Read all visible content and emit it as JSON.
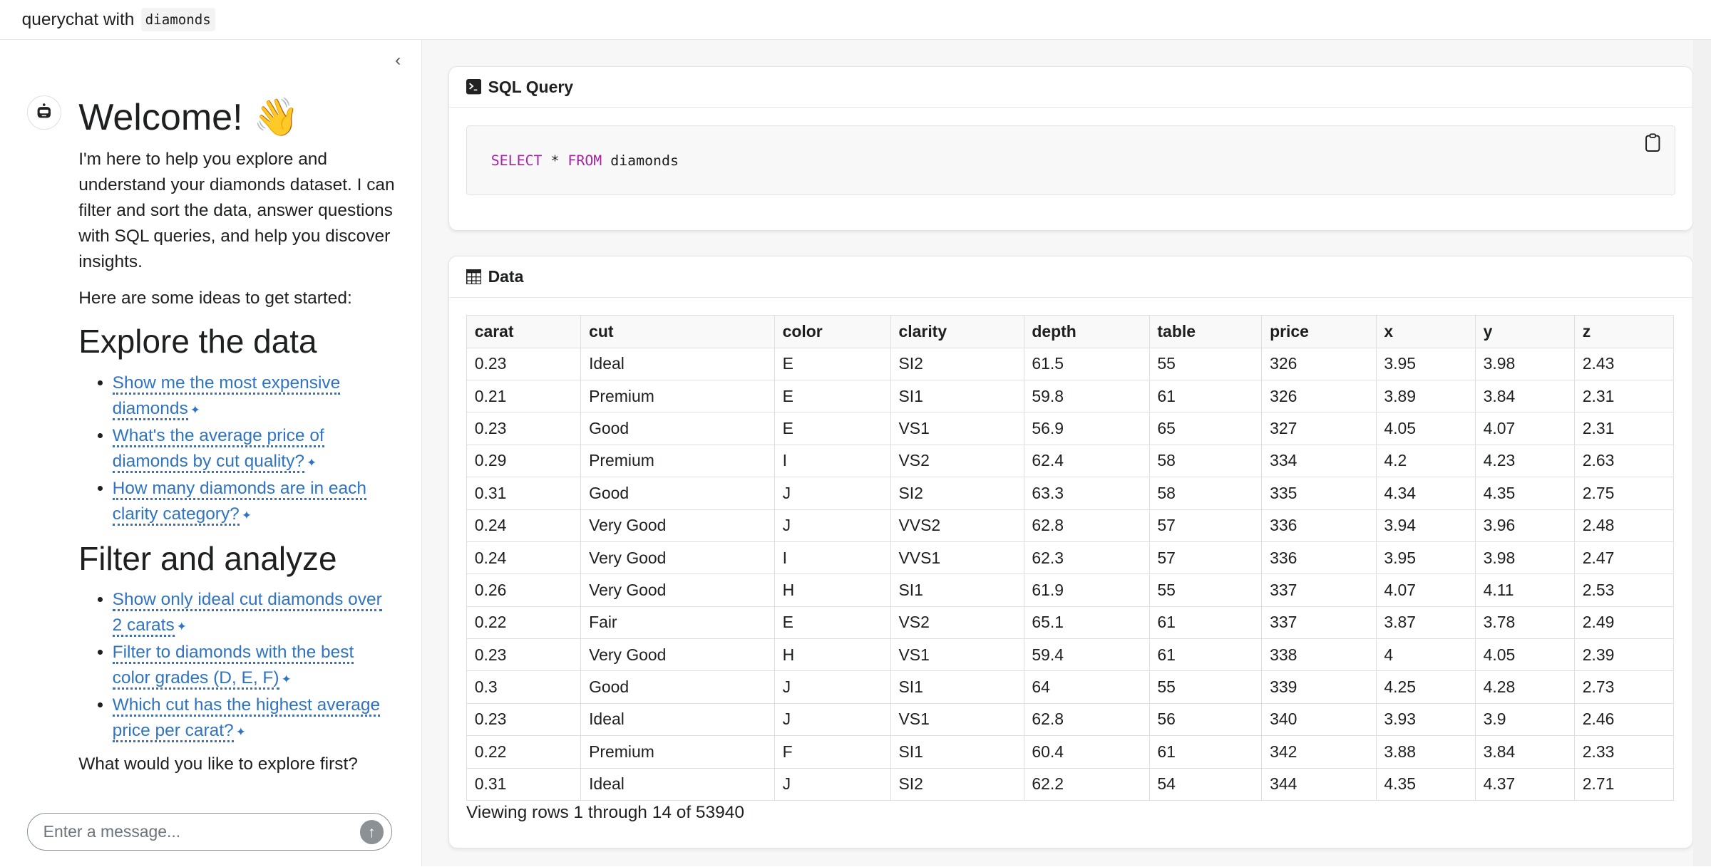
{
  "header": {
    "title": "querychat with",
    "dataset": "diamonds"
  },
  "sidebar": {
    "welcome": "Welcome! 👋",
    "intro": "I'm here to help you explore and understand your diamonds dataset. I can filter and sort the data, answer questions with SQL queries, and help you discover insights.",
    "ideas": "Here are some ideas to get started:",
    "sections": [
      {
        "title": "Explore the data",
        "items": [
          "Show me the most expensive diamonds",
          "What's the average price of diamonds by cut quality?",
          "How many diamonds are in each clarity category?"
        ]
      },
      {
        "title": "Filter and analyze",
        "items": [
          "Show only ideal cut diamonds over 2 carats",
          "Filter to diamonds with the best color grades (D, E, F)",
          "Which cut has the highest average price per carat?"
        ]
      }
    ],
    "closing": "What would you like to explore first?",
    "input_placeholder": "Enter a message..."
  },
  "sql_card": {
    "title": "SQL Query",
    "query": {
      "kw1": "SELECT",
      "star": " * ",
      "kw2": "FROM",
      "table": " diamonds"
    }
  },
  "data_card": {
    "title": "Data",
    "columns": [
      "carat",
      "cut",
      "color",
      "clarity",
      "depth",
      "table",
      "price",
      "x",
      "y",
      "z"
    ],
    "rows": [
      [
        "0.23",
        "Ideal",
        "E",
        "SI2",
        "61.5",
        "55",
        "326",
        "3.95",
        "3.98",
        "2.43"
      ],
      [
        "0.21",
        "Premium",
        "E",
        "SI1",
        "59.8",
        "61",
        "326",
        "3.89",
        "3.84",
        "2.31"
      ],
      [
        "0.23",
        "Good",
        "E",
        "VS1",
        "56.9",
        "65",
        "327",
        "4.05",
        "4.07",
        "2.31"
      ],
      [
        "0.29",
        "Premium",
        "I",
        "VS2",
        "62.4",
        "58",
        "334",
        "4.2",
        "4.23",
        "2.63"
      ],
      [
        "0.31",
        "Good",
        "J",
        "SI2",
        "63.3",
        "58",
        "335",
        "4.34",
        "4.35",
        "2.75"
      ],
      [
        "0.24",
        "Very Good",
        "J",
        "VVS2",
        "62.8",
        "57",
        "336",
        "3.94",
        "3.96",
        "2.48"
      ],
      [
        "0.24",
        "Very Good",
        "I",
        "VVS1",
        "62.3",
        "57",
        "336",
        "3.95",
        "3.98",
        "2.47"
      ],
      [
        "0.26",
        "Very Good",
        "H",
        "SI1",
        "61.9",
        "55",
        "337",
        "4.07",
        "4.11",
        "2.53"
      ],
      [
        "0.22",
        "Fair",
        "E",
        "VS2",
        "65.1",
        "61",
        "337",
        "3.87",
        "3.78",
        "2.49"
      ],
      [
        "0.23",
        "Very Good",
        "H",
        "VS1",
        "59.4",
        "61",
        "338",
        "4",
        "4.05",
        "2.39"
      ],
      [
        "0.3",
        "Good",
        "J",
        "SI1",
        "64",
        "55",
        "339",
        "4.25",
        "4.28",
        "2.73"
      ],
      [
        "0.23",
        "Ideal",
        "J",
        "VS1",
        "62.8",
        "56",
        "340",
        "3.93",
        "3.9",
        "2.46"
      ],
      [
        "0.22",
        "Premium",
        "F",
        "SI1",
        "60.4",
        "61",
        "342",
        "3.88",
        "3.84",
        "2.33"
      ],
      [
        "0.31",
        "Ideal",
        "J",
        "SI2",
        "62.2",
        "54",
        "344",
        "4.35",
        "4.37",
        "2.71"
      ]
    ],
    "footer": "Viewing rows 1 through 14 of 53940"
  }
}
